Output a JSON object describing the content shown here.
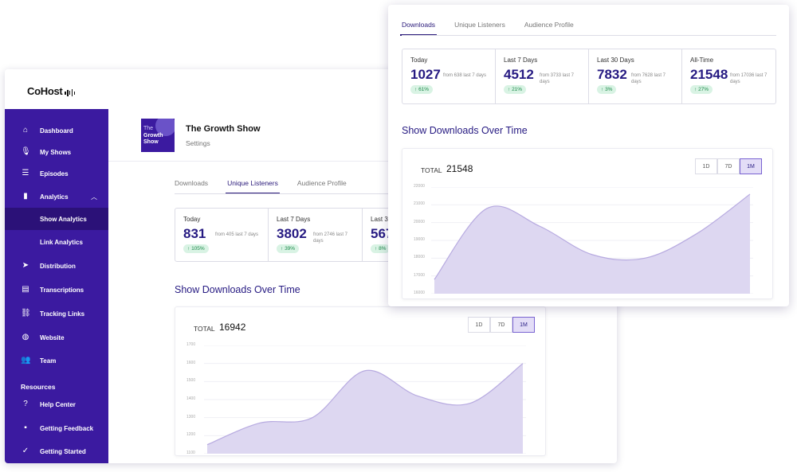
{
  "brand": {
    "name": "CoHost"
  },
  "sidebar": {
    "items": [
      {
        "label": "Dashboard",
        "icon": "home-icon"
      },
      {
        "label": "My Shows",
        "icon": "microphone-icon"
      },
      {
        "label": "Episodes",
        "icon": "list-icon"
      },
      {
        "label": "Analytics",
        "icon": "bar-chart-icon"
      },
      {
        "label": "Show Analytics",
        "icon": ""
      },
      {
        "label": "Link Analytics",
        "icon": ""
      },
      {
        "label": "Distribution",
        "icon": "send-icon"
      },
      {
        "label": "Transcriptions",
        "icon": "document-icon"
      },
      {
        "label": "Tracking Links",
        "icon": "link-icon"
      },
      {
        "label": "Website",
        "icon": "globe-icon"
      },
      {
        "label": "Team",
        "icon": "users-icon"
      }
    ],
    "resources_label": "Resources",
    "resources": [
      {
        "label": "Help Center",
        "icon": "help-icon"
      },
      {
        "label": "Getting Feedback",
        "icon": "chat-icon"
      },
      {
        "label": "Getting Started",
        "icon": "check-circle-icon"
      }
    ]
  },
  "show": {
    "title": "The Growth Show",
    "subtitle": "Settings",
    "cover_line1": "The",
    "cover_line2": "Growth",
    "cover_line3": "Show"
  },
  "tabs": [
    "Downloads",
    "Unique Listeners",
    "Audience Profile"
  ],
  "back_panel": {
    "active_tab": 1,
    "stats": [
      {
        "caption": "Today",
        "value": "831",
        "from": "from 405 last 7 days",
        "change": "105%"
      },
      {
        "caption": "Last 7 Days",
        "value": "3802",
        "from": "from 2746 last 7 days",
        "change": "39%"
      },
      {
        "caption": "Last 30",
        "value": "567",
        "from": "",
        "change": "8%"
      }
    ],
    "chart_title": "Show Downloads Over Time",
    "total_label": "TOTAL",
    "total_value": "16942",
    "ranges": [
      "1D",
      "7D",
      "1M"
    ],
    "active_range": "1M",
    "yticks": [
      "1700",
      "1600",
      "1500",
      "1400",
      "1300",
      "1200",
      "1100"
    ]
  },
  "front_panel": {
    "active_tab": 0,
    "stats": [
      {
        "caption": "Today",
        "value": "1027",
        "from": "from 638 last 7 days",
        "change": "61%"
      },
      {
        "caption": "Last 7 Days",
        "value": "4512",
        "from": "from 3733 last 7 days",
        "change": "21%"
      },
      {
        "caption": "Last 30 Days",
        "value": "7832",
        "from": "from 7628 last 7 days",
        "change": "3%"
      },
      {
        "caption": "All-Time",
        "value": "21548",
        "from": "from 17036 last 7 days",
        "change": "27%"
      }
    ],
    "chart_title": "Show Downloads Over Time",
    "total_label": "TOTAL",
    "total_value": "21548",
    "ranges": [
      "1D",
      "7D",
      "1M"
    ],
    "active_range": "1M",
    "yticks": [
      "22000",
      "21000",
      "20000",
      "19000",
      "18000",
      "17000",
      "16000"
    ]
  },
  "colors": {
    "sidebar": "#3b1aa0",
    "accent": "#261a82",
    "area_fill": "#ddd7f1",
    "area_stroke": "#b7aae0",
    "badge_bg": "#d9f3e4",
    "badge_text": "#1d8a4a"
  },
  "chart_data": [
    {
      "type": "area",
      "title": "Show Downloads Over Time",
      "x": [
        "",
        "",
        "",
        "",
        "",
        "",
        ""
      ],
      "series": [
        {
          "values": [
            1150,
            1270,
            1300,
            1560,
            1420,
            1380,
            1600
          ]
        }
      ],
      "ylim": [
        1100,
        1700
      ],
      "grid": true
    },
    {
      "type": "area",
      "title": "Show Downloads Over Time",
      "x": [
        "",
        "",
        "",
        "",
        "",
        "",
        ""
      ],
      "series": [
        {
          "values": [
            16800,
            20800,
            19800,
            18200,
            18000,
            19400,
            21600
          ]
        }
      ],
      "ylim": [
        16000,
        22000
      ],
      "grid": true
    }
  ]
}
